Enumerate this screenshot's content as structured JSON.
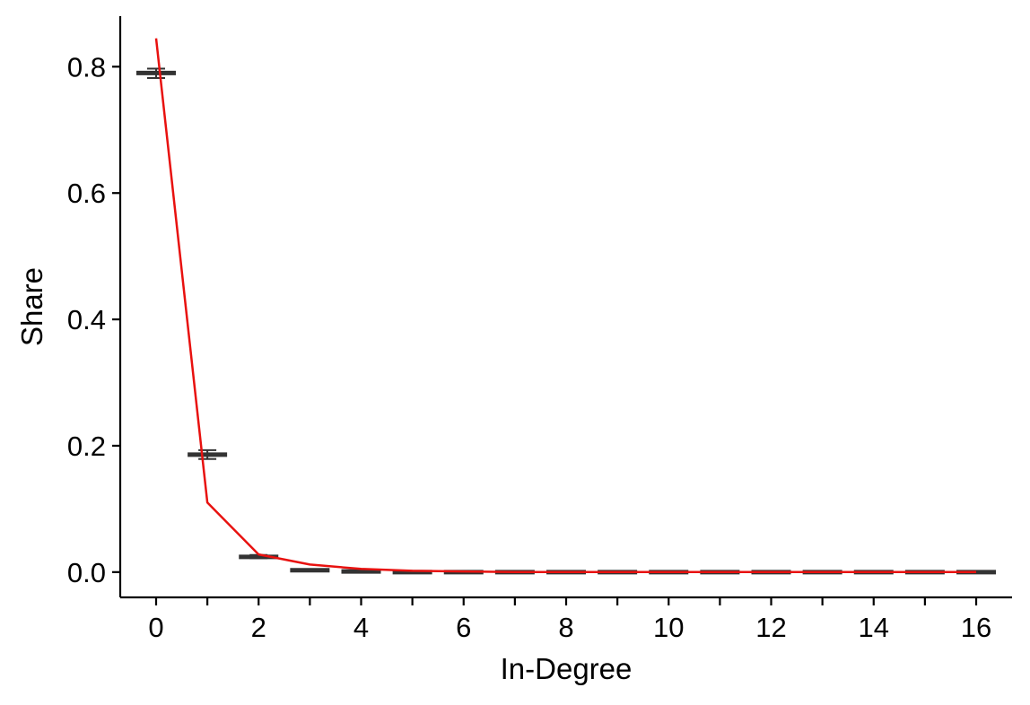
{
  "chart_data": {
    "type": "line",
    "title": "",
    "xlabel": "In-Degree",
    "ylabel": "Share",
    "xlim": [
      -0.7,
      16.7
    ],
    "ylim": [
      -0.04,
      0.88
    ],
    "grid": false,
    "x_ticks": [
      {
        "value": 0,
        "label": "0"
      },
      {
        "value": 1,
        "label": ""
      },
      {
        "value": 2,
        "label": "2"
      },
      {
        "value": 3,
        "label": ""
      },
      {
        "value": 4,
        "label": "4"
      },
      {
        "value": 5,
        "label": ""
      },
      {
        "value": 6,
        "label": "6"
      },
      {
        "value": 7,
        "label": ""
      },
      {
        "value": 8,
        "label": "8"
      },
      {
        "value": 9,
        "label": ""
      },
      {
        "value": 10,
        "label": "10"
      },
      {
        "value": 11,
        "label": ""
      },
      {
        "value": 12,
        "label": "12"
      },
      {
        "value": 13,
        "label": ""
      },
      {
        "value": 14,
        "label": "14"
      },
      {
        "value": 15,
        "label": ""
      },
      {
        "value": 16,
        "label": "16"
      }
    ],
    "y_ticks": [
      {
        "value": 0.0,
        "label": "0.0"
      },
      {
        "value": 0.2,
        "label": "0.2"
      },
      {
        "value": 0.4,
        "label": "0.4"
      },
      {
        "value": 0.6,
        "label": "0.6"
      },
      {
        "value": 0.8,
        "label": "0.8"
      }
    ],
    "series": [
      {
        "kind": "errorbar",
        "color": "#333333",
        "points": [
          {
            "x": 0,
            "y": 0.79,
            "ymin": 0.782,
            "ymax": 0.797
          },
          {
            "x": 1,
            "y": 0.186,
            "ymin": 0.179,
            "ymax": 0.193
          },
          {
            "x": 2,
            "y": 0.024,
            "ymin": 0.022,
            "ymax": 0.027
          },
          {
            "x": 3,
            "y": 0.003,
            "ymin": 0.002,
            "ymax": 0.004
          },
          {
            "x": 4,
            "y": 0.001,
            "ymin": 0.0,
            "ymax": 0.002
          },
          {
            "x": 5,
            "y": 0.0,
            "ymin": 0.0,
            "ymax": 0.001
          },
          {
            "x": 6,
            "y": 0.0,
            "ymin": 0.0,
            "ymax": 0.0
          },
          {
            "x": 7,
            "y": 0.0,
            "ymin": 0.0,
            "ymax": 0.0
          },
          {
            "x": 8,
            "y": 0.0,
            "ymin": 0.0,
            "ymax": 0.0
          },
          {
            "x": 9,
            "y": 0.0,
            "ymin": 0.0,
            "ymax": 0.0
          },
          {
            "x": 10,
            "y": 0.0,
            "ymin": 0.0,
            "ymax": 0.0
          },
          {
            "x": 11,
            "y": 0.0,
            "ymin": 0.0,
            "ymax": 0.0
          },
          {
            "x": 12,
            "y": 0.0,
            "ymin": 0.0,
            "ymax": 0.0
          },
          {
            "x": 13,
            "y": 0.0,
            "ymin": 0.0,
            "ymax": 0.0
          },
          {
            "x": 14,
            "y": 0.0,
            "ymin": 0.0,
            "ymax": 0.0
          },
          {
            "x": 15,
            "y": 0.0,
            "ymin": 0.0,
            "ymax": 0.0
          },
          {
            "x": 16,
            "y": 0.0,
            "ymin": 0.0,
            "ymax": 0.0
          }
        ]
      },
      {
        "kind": "line",
        "color": "#e8110f",
        "points": [
          {
            "x": 0,
            "y": 0.845
          },
          {
            "x": 1,
            "y": 0.11
          },
          {
            "x": 2,
            "y": 0.028
          },
          {
            "x": 3,
            "y": 0.012
          },
          {
            "x": 4,
            "y": 0.005
          },
          {
            "x": 5,
            "y": 0.002
          },
          {
            "x": 6,
            "y": 0.001
          },
          {
            "x": 7,
            "y": 0.0
          },
          {
            "x": 8,
            "y": 0.0
          },
          {
            "x": 9,
            "y": 0.0
          },
          {
            "x": 10,
            "y": 0.0
          },
          {
            "x": 11,
            "y": 0.0
          },
          {
            "x": 12,
            "y": 0.0
          },
          {
            "x": 13,
            "y": 0.0
          },
          {
            "x": 14,
            "y": 0.0
          },
          {
            "x": 15,
            "y": 0.0
          },
          {
            "x": 16,
            "y": 0.0
          }
        ]
      }
    ]
  }
}
